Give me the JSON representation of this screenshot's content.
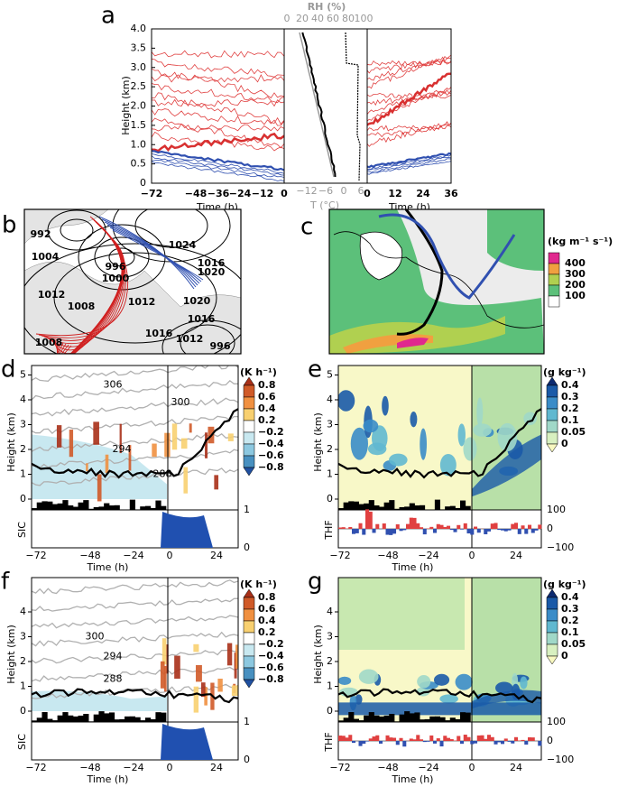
{
  "panel_a": {
    "label": "a",
    "y_label": "Height (km)",
    "y_ticks": [
      "0",
      "0.5",
      "1.0",
      "1.5",
      "2.0",
      "2.5",
      "3.0",
      "3.5",
      "4.0"
    ],
    "left_x_ticks": [
      "−72",
      "−48",
      "−36",
      "−24",
      "−12",
      "0"
    ],
    "right_x_ticks": [
      "0",
      "12",
      "24",
      "36"
    ],
    "x_label_left": "Time (h)",
    "x_label_right": "Time (h)",
    "rh_label": "RH (%)",
    "rh_ticks": [
      "0",
      "20",
      "40",
      "60",
      "80",
      "100"
    ],
    "t_label": "T (°C)",
    "t_ticks": [
      "−12",
      "−6",
      "0",
      "6"
    ]
  },
  "panel_b": {
    "label": "b",
    "contour_labels": [
      "992",
      "1004",
      "996",
      "1000",
      "1024",
      "1016",
      "1020",
      "1012",
      "1008",
      "1012",
      "1020",
      "1016",
      "1016",
      "1012",
      "1008",
      "996"
    ]
  },
  "panel_c": {
    "label": "c",
    "legend_title": "(kg m⁻¹ s⁻¹)",
    "legend_ticks": [
      "400",
      "300",
      "200",
      "100"
    ]
  },
  "panel_d": {
    "label": "d",
    "colorbar_title": "(K h⁻¹)",
    "colorbar_ticks": [
      "0.8",
      "0.6",
      "0.4",
      "0.2",
      "−0.2",
      "−0.4",
      "−0.6",
      "−0.8"
    ],
    "y_label": "Height (km)",
    "y_ticks": [
      "0",
      "1",
      "2",
      "3",
      "4",
      "5"
    ],
    "contour_labels": [
      "306",
      "300",
      "294",
      "288"
    ],
    "sub_label": "SIC",
    "sub_ticks": [
      "1",
      "0"
    ],
    "x_ticks": [
      "−72",
      "−48",
      "−24",
      "0",
      "24"
    ],
    "x_label": "Time (h)"
  },
  "panel_e": {
    "label": "e",
    "colorbar_title": "(g kg⁻¹)",
    "colorbar_ticks": [
      "0.4",
      "0.3",
      "0.2",
      "0.1",
      "0.05",
      "0"
    ],
    "y_label": "Height (km)",
    "y_ticks": [
      "0",
      "1",
      "2",
      "3",
      "4",
      "5"
    ],
    "sub_label": "THF",
    "sub_ticks": [
      "100",
      "0",
      "−100"
    ],
    "x_ticks": [
      "−72",
      "−48",
      "−24",
      "0",
      "24"
    ],
    "x_label": "Time (h)"
  },
  "panel_f": {
    "label": "f",
    "colorbar_title": "(K h⁻¹)",
    "colorbar_ticks": [
      "0.8",
      "0.6",
      "0.4",
      "0.2",
      "−0.2",
      "−0.4",
      "−0.6",
      "−0.8"
    ],
    "y_label": "Height (km)",
    "y_ticks": [
      "0",
      "1",
      "2",
      "3",
      "4"
    ],
    "contour_labels": [
      "300",
      "294",
      "288"
    ],
    "sub_label": "SIC",
    "sub_ticks": [
      "1",
      "0"
    ],
    "x_ticks": [
      "−72",
      "−48",
      "−24",
      "0",
      "24"
    ],
    "x_label": "Time (h)"
  },
  "panel_g": {
    "label": "g",
    "colorbar_title": "(g kg⁻¹)",
    "colorbar_ticks": [
      "0.4",
      "0.3",
      "0.2",
      "0.1",
      "0.05",
      "0"
    ],
    "y_label": "Height (km)",
    "y_ticks": [
      "0",
      "1",
      "2",
      "3",
      "4"
    ],
    "sub_label": "THF",
    "sub_ticks": [
      "100",
      "0",
      "−100"
    ],
    "x_ticks": [
      "−72",
      "−48",
      "−24",
      "0",
      "24"
    ],
    "x_label": "Time (h)"
  }
}
